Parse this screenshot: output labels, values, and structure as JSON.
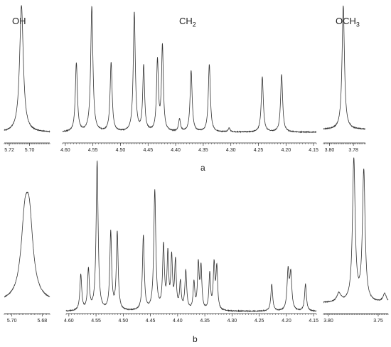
{
  "labels": {
    "oh": "OH",
    "ch2": "CH",
    "ch2_sub": "2",
    "och3": "OCH",
    "och3_sub": "3",
    "panel_a": "a",
    "panel_b": "b"
  },
  "colors": {
    "trace": "#333333",
    "axis": "#333333"
  },
  "chart_data": [
    {
      "type": "line",
      "panel": "a",
      "windows": [
        {
          "name": "OH",
          "xlim": [
            5.725,
            5.68
          ],
          "ticks": [
            5.72,
            5.7
          ],
          "tick_labels": [
            "5.72",
            "5.70"
          ],
          "peaks": [
            {
              "x": 5.708,
              "h": 1.0,
              "w": 0.0022
            }
          ]
        },
        {
          "name": "CH2",
          "xlim": [
            4.605,
            4.145
          ],
          "ticks": [
            4.6,
            4.55,
            4.5,
            4.45,
            4.4,
            4.35,
            4.3,
            4.25,
            4.2,
            4.15
          ],
          "tick_labels": [
            "4.60",
            "4.55",
            "4.50",
            "4.45",
            "4.40",
            "4.35",
            "4.30",
            "4.25",
            "4.20",
            "4.15"
          ],
          "peaks": [
            {
              "x": 4.58,
              "h": 0.55,
              "w": 0.0022
            },
            {
              "x": 4.552,
              "h": 1.0,
              "w": 0.0024
            },
            {
              "x": 4.517,
              "h": 0.55,
              "w": 0.0022
            },
            {
              "x": 4.475,
              "h": 0.95,
              "w": 0.0022
            },
            {
              "x": 4.458,
              "h": 0.52,
              "w": 0.002
            },
            {
              "x": 4.433,
              "h": 0.56,
              "w": 0.002
            },
            {
              "x": 4.424,
              "h": 0.68,
              "w": 0.002
            },
            {
              "x": 4.393,
              "h": 0.1,
              "w": 0.002
            },
            {
              "x": 4.372,
              "h": 0.49,
              "w": 0.0022
            },
            {
              "x": 4.339,
              "h": 0.54,
              "w": 0.0022
            },
            {
              "x": 4.303,
              "h": 0.03,
              "w": 0.002
            },
            {
              "x": 4.243,
              "h": 0.44,
              "w": 0.0022
            },
            {
              "x": 4.208,
              "h": 0.46,
              "w": 0.0022
            }
          ]
        },
        {
          "name": "OCH3",
          "xlim": [
            3.805,
            3.77
          ],
          "ticks": [
            3.8,
            3.78
          ],
          "tick_labels": [
            "3.80",
            "3.78"
          ],
          "peaks": [
            {
              "x": 3.7885,
              "h": 1.0,
              "w": 0.0012
            }
          ]
        }
      ]
    },
    {
      "type": "line",
      "panel": "b",
      "windows": [
        {
          "name": "OH",
          "xlim": [
            5.705,
            5.675
          ],
          "ticks": [
            5.7,
            5.68
          ],
          "tick_labels": [
            "5.70",
            "5.68"
          ],
          "peaks": [
            {
              "x": 5.6915,
              "h": 0.8,
              "w": 0.003
            },
            {
              "x": 5.6885,
              "h": 0.85,
              "w": 0.003
            }
          ]
        },
        {
          "name": "CH2",
          "xlim": [
            4.605,
            4.145
          ],
          "ticks": [
            4.6,
            4.55,
            4.5,
            4.45,
            4.4,
            4.35,
            4.3,
            4.25,
            4.2,
            4.15
          ],
          "tick_labels": [
            "4.60",
            "4.55",
            "4.50",
            "4.45",
            "4.40",
            "4.35",
            "4.30",
            "4.25",
            "4.20",
            "4.15"
          ],
          "peaks": [
            {
              "x": 4.578,
              "h": 0.24,
              "w": 0.002
            },
            {
              "x": 4.564,
              "h": 0.27,
              "w": 0.002
            },
            {
              "x": 4.548,
              "h": 1.0,
              "w": 0.0022
            },
            {
              "x": 4.523,
              "h": 0.52,
              "w": 0.002
            },
            {
              "x": 4.511,
              "h": 0.52,
              "w": 0.002
            },
            {
              "x": 4.463,
              "h": 0.5,
              "w": 0.002
            },
            {
              "x": 4.442,
              "h": 0.8,
              "w": 0.0022
            },
            {
              "x": 4.426,
              "h": 0.42,
              "w": 0.002
            },
            {
              "x": 4.418,
              "h": 0.36,
              "w": 0.0018
            },
            {
              "x": 4.411,
              "h": 0.34,
              "w": 0.0018
            },
            {
              "x": 4.404,
              "h": 0.32,
              "w": 0.0018
            },
            {
              "x": 4.395,
              "h": 0.18,
              "w": 0.0018
            },
            {
              "x": 4.385,
              "h": 0.26,
              "w": 0.002
            },
            {
              "x": 4.37,
              "h": 0.18,
              "w": 0.0018
            },
            {
              "x": 4.362,
              "h": 0.3,
              "w": 0.0018
            },
            {
              "x": 4.357,
              "h": 0.28,
              "w": 0.0018
            },
            {
              "x": 4.341,
              "h": 0.24,
              "w": 0.0018
            },
            {
              "x": 4.333,
              "h": 0.3,
              "w": 0.0018
            },
            {
              "x": 4.328,
              "h": 0.28,
              "w": 0.0018
            },
            {
              "x": 4.227,
              "h": 0.18,
              "w": 0.002
            },
            {
              "x": 4.197,
              "h": 0.26,
              "w": 0.0022
            },
            {
              "x": 4.192,
              "h": 0.24,
              "w": 0.0022
            },
            {
              "x": 4.165,
              "h": 0.18,
              "w": 0.002
            }
          ]
        },
        {
          "name": "OCH3",
          "xlim": [
            3.805,
            3.74
          ],
          "ticks": [
            3.8,
            3.75
          ],
          "tick_labels": [
            "3.80",
            "3.75"
          ],
          "peaks": [
            {
              "x": 3.7895,
              "h": 0.06,
              "w": 0.0025
            },
            {
              "x": 3.7745,
              "h": 1.0,
              "w": 0.0016
            },
            {
              "x": 3.7645,
              "h": 0.92,
              "w": 0.0016
            },
            {
              "x": 3.7435,
              "h": 0.06,
              "w": 0.002
            }
          ]
        }
      ]
    }
  ]
}
